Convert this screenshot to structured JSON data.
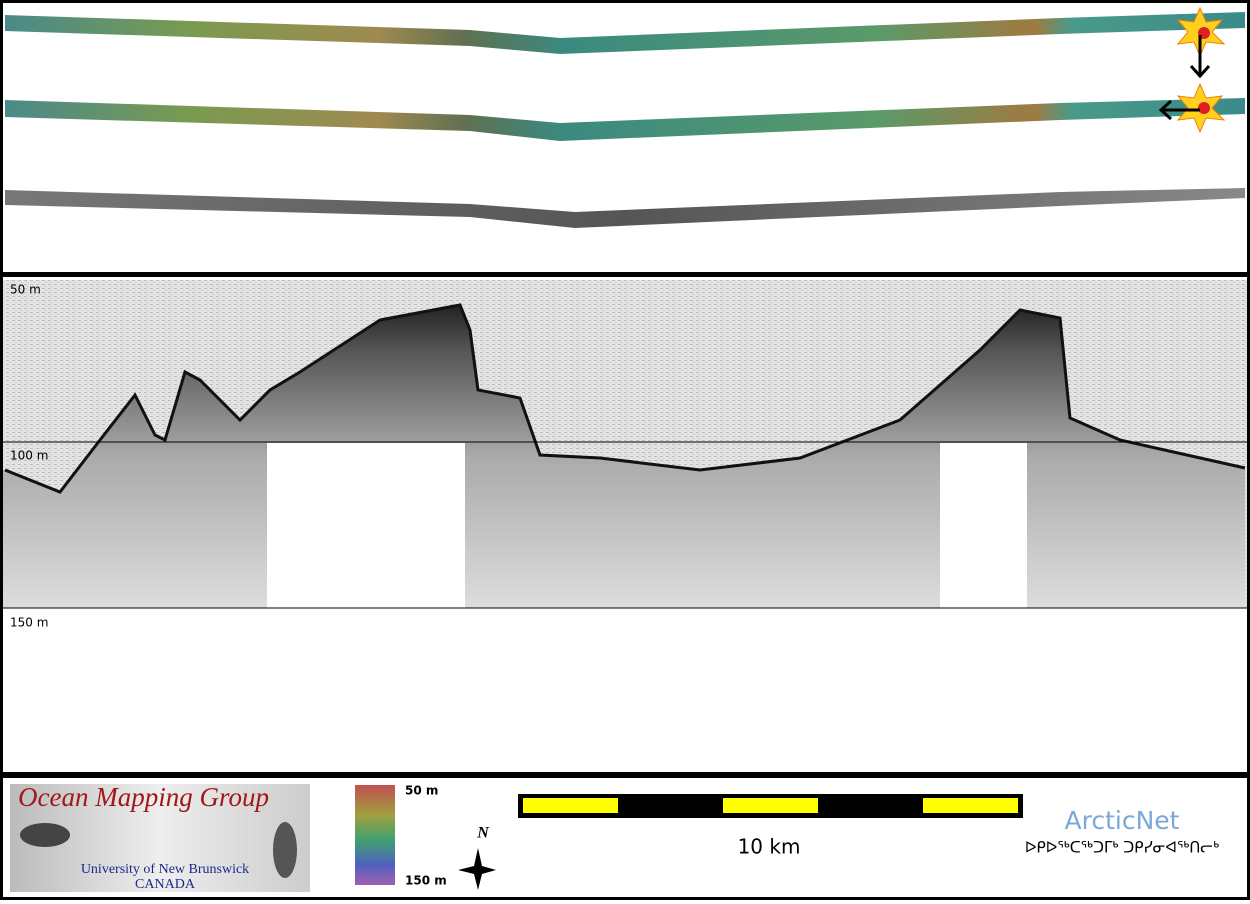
{
  "profile_view": {
    "depth_labels": [
      "50 m",
      "100 m",
      "150 m"
    ]
  },
  "footer": {
    "logo_title": "Ocean Mapping Group",
    "logo_university": "University of New Brunswick",
    "logo_country": "CANADA",
    "colorbar_top": "50 m",
    "colorbar_bottom": "150 m",
    "north": "N",
    "scale_label": "10 km",
    "partner": "ArcticNet",
    "partner_syllabics": "ᐅᑭᐅᖅᑕᖅᑐᒥᒃ ᑐᑭᓯᓂᐊᖅᑎᓕᒃ"
  }
}
